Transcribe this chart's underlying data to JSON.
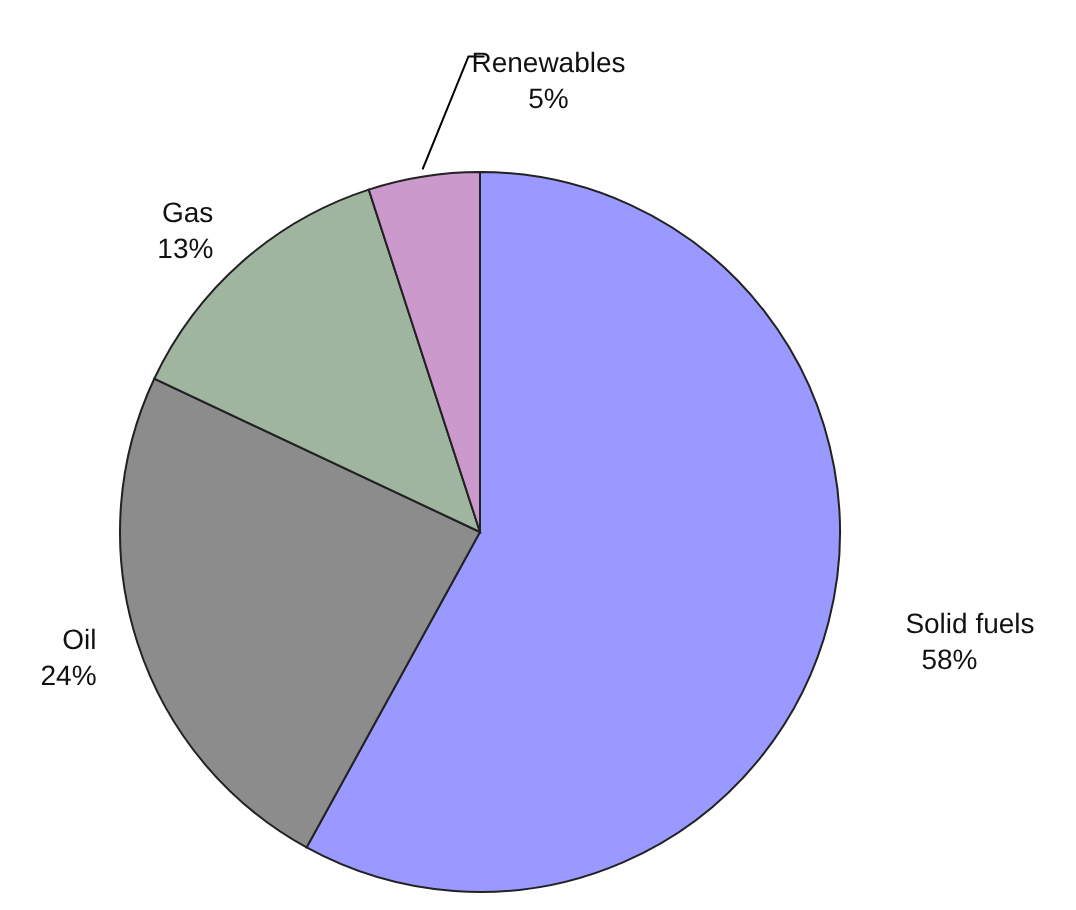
{
  "chart_data": {
    "type": "pie",
    "categories": [
      "Solid fuels",
      "Oil",
      "Gas",
      "Renewables"
    ],
    "values": [
      58,
      24,
      13,
      5
    ],
    "colors": [
      "#9999ff",
      "#8c8c8c",
      "#9fb59f",
      "#cc99cc"
    ],
    "value_labels": [
      "58%",
      "24%",
      "13%",
      "5%"
    ]
  }
}
